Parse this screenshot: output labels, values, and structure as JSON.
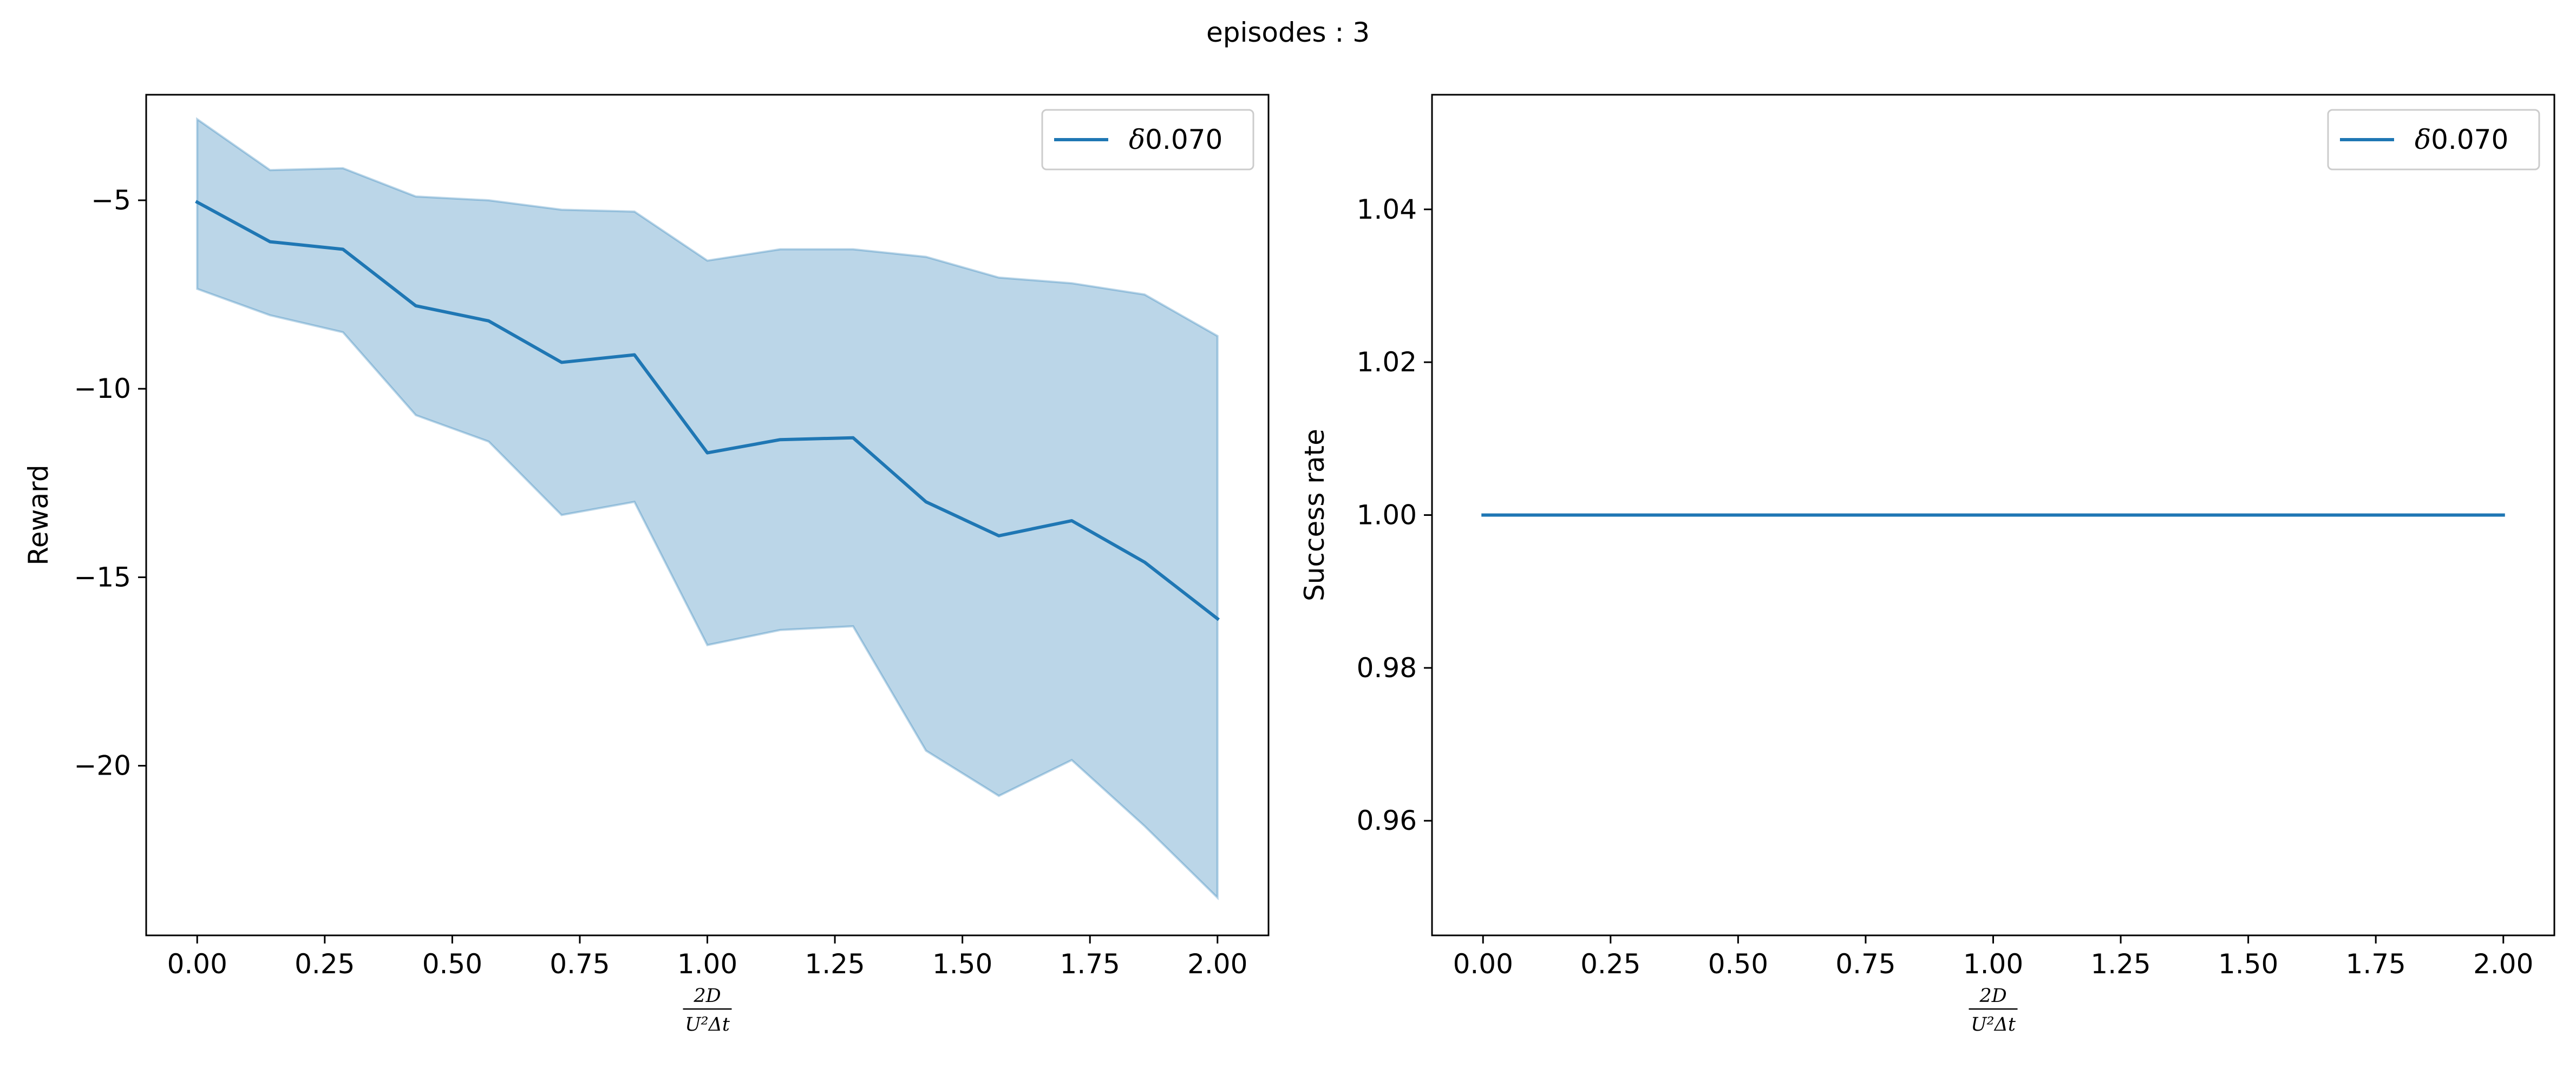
{
  "figure": {
    "suptitle": "episodes : 3"
  },
  "chart_data": [
    {
      "type": "line",
      "title": "",
      "xlabel": {
        "numerator": "2D",
        "denominator": "U²Δt"
      },
      "ylabel": "Reward",
      "xlim": [
        -0.1,
        2.1
      ],
      "ylim": [
        -24.5,
        -2.2
      ],
      "xticks": [
        0.0,
        0.25,
        0.5,
        0.75,
        1.0,
        1.25,
        1.5,
        1.75,
        2.0
      ],
      "xtick_labels": [
        "0.00",
        "0.25",
        "0.50",
        "0.75",
        "1.00",
        "1.25",
        "1.50",
        "1.75",
        "2.00"
      ],
      "yticks": [
        -5,
        -10,
        -15,
        -20
      ],
      "ytick_labels": [
        "−5",
        "−10",
        "−15",
        "−20"
      ],
      "grid": false,
      "legend": {
        "placement": "top-right",
        "entries": [
          {
            "label_italic": "δ",
            "label": "0.070"
          }
        ]
      },
      "color": "#1f77b4",
      "series": [
        {
          "name": "δ0.070",
          "x": [
            0.0,
            0.1429,
            0.2857,
            0.4286,
            0.5714,
            0.7143,
            0.8571,
            1.0,
            1.1429,
            1.2857,
            1.4286,
            1.5714,
            1.7143,
            1.8571,
            2.0
          ],
          "y": [
            -5.05,
            -6.1,
            -6.3,
            -7.8,
            -8.2,
            -9.3,
            -9.1,
            -11.7,
            -11.35,
            -11.3,
            -13.0,
            -13.9,
            -13.5,
            -14.6,
            -16.1
          ],
          "y_upper": [
            -2.85,
            -4.2,
            -4.15,
            -4.9,
            -5.0,
            -5.25,
            -5.3,
            -6.6,
            -6.3,
            -6.3,
            -6.5,
            -7.05,
            -7.2,
            -7.5,
            -8.6
          ],
          "y_lower": [
            -7.35,
            -8.05,
            -8.5,
            -10.7,
            -11.4,
            -13.35,
            -13.0,
            -16.8,
            -16.4,
            -16.3,
            -19.6,
            -20.8,
            -19.85,
            -21.6,
            -23.5
          ]
        }
      ]
    },
    {
      "type": "line",
      "title": "",
      "xlabel": {
        "numerator": "2D",
        "denominator": "U²Δt"
      },
      "ylabel": "Success rate",
      "xlim": [
        -0.1,
        2.1
      ],
      "ylim": [
        0.945,
        1.055
      ],
      "xticks": [
        0.0,
        0.25,
        0.5,
        0.75,
        1.0,
        1.25,
        1.5,
        1.75,
        2.0
      ],
      "xtick_labels": [
        "0.00",
        "0.25",
        "0.50",
        "0.75",
        "1.00",
        "1.25",
        "1.50",
        "1.75",
        "2.00"
      ],
      "yticks": [
        0.96,
        0.98,
        1.0,
        1.02,
        1.04
      ],
      "ytick_labels": [
        "0.96",
        "0.98",
        "1.00",
        "1.02",
        "1.04"
      ],
      "grid": false,
      "legend": {
        "placement": "top-right",
        "entries": [
          {
            "label_italic": "δ",
            "label": "0.070"
          }
        ]
      },
      "color": "#1f77b4",
      "series": [
        {
          "name": "δ0.070",
          "x": [
            0.0,
            0.1429,
            0.2857,
            0.4286,
            0.5714,
            0.7143,
            0.8571,
            1.0,
            1.1429,
            1.2857,
            1.4286,
            1.5714,
            1.7143,
            1.8571,
            2.0
          ],
          "y": [
            1.0,
            1.0,
            1.0,
            1.0,
            1.0,
            1.0,
            1.0,
            1.0,
            1.0,
            1.0,
            1.0,
            1.0,
            1.0,
            1.0,
            1.0
          ]
        }
      ]
    }
  ]
}
